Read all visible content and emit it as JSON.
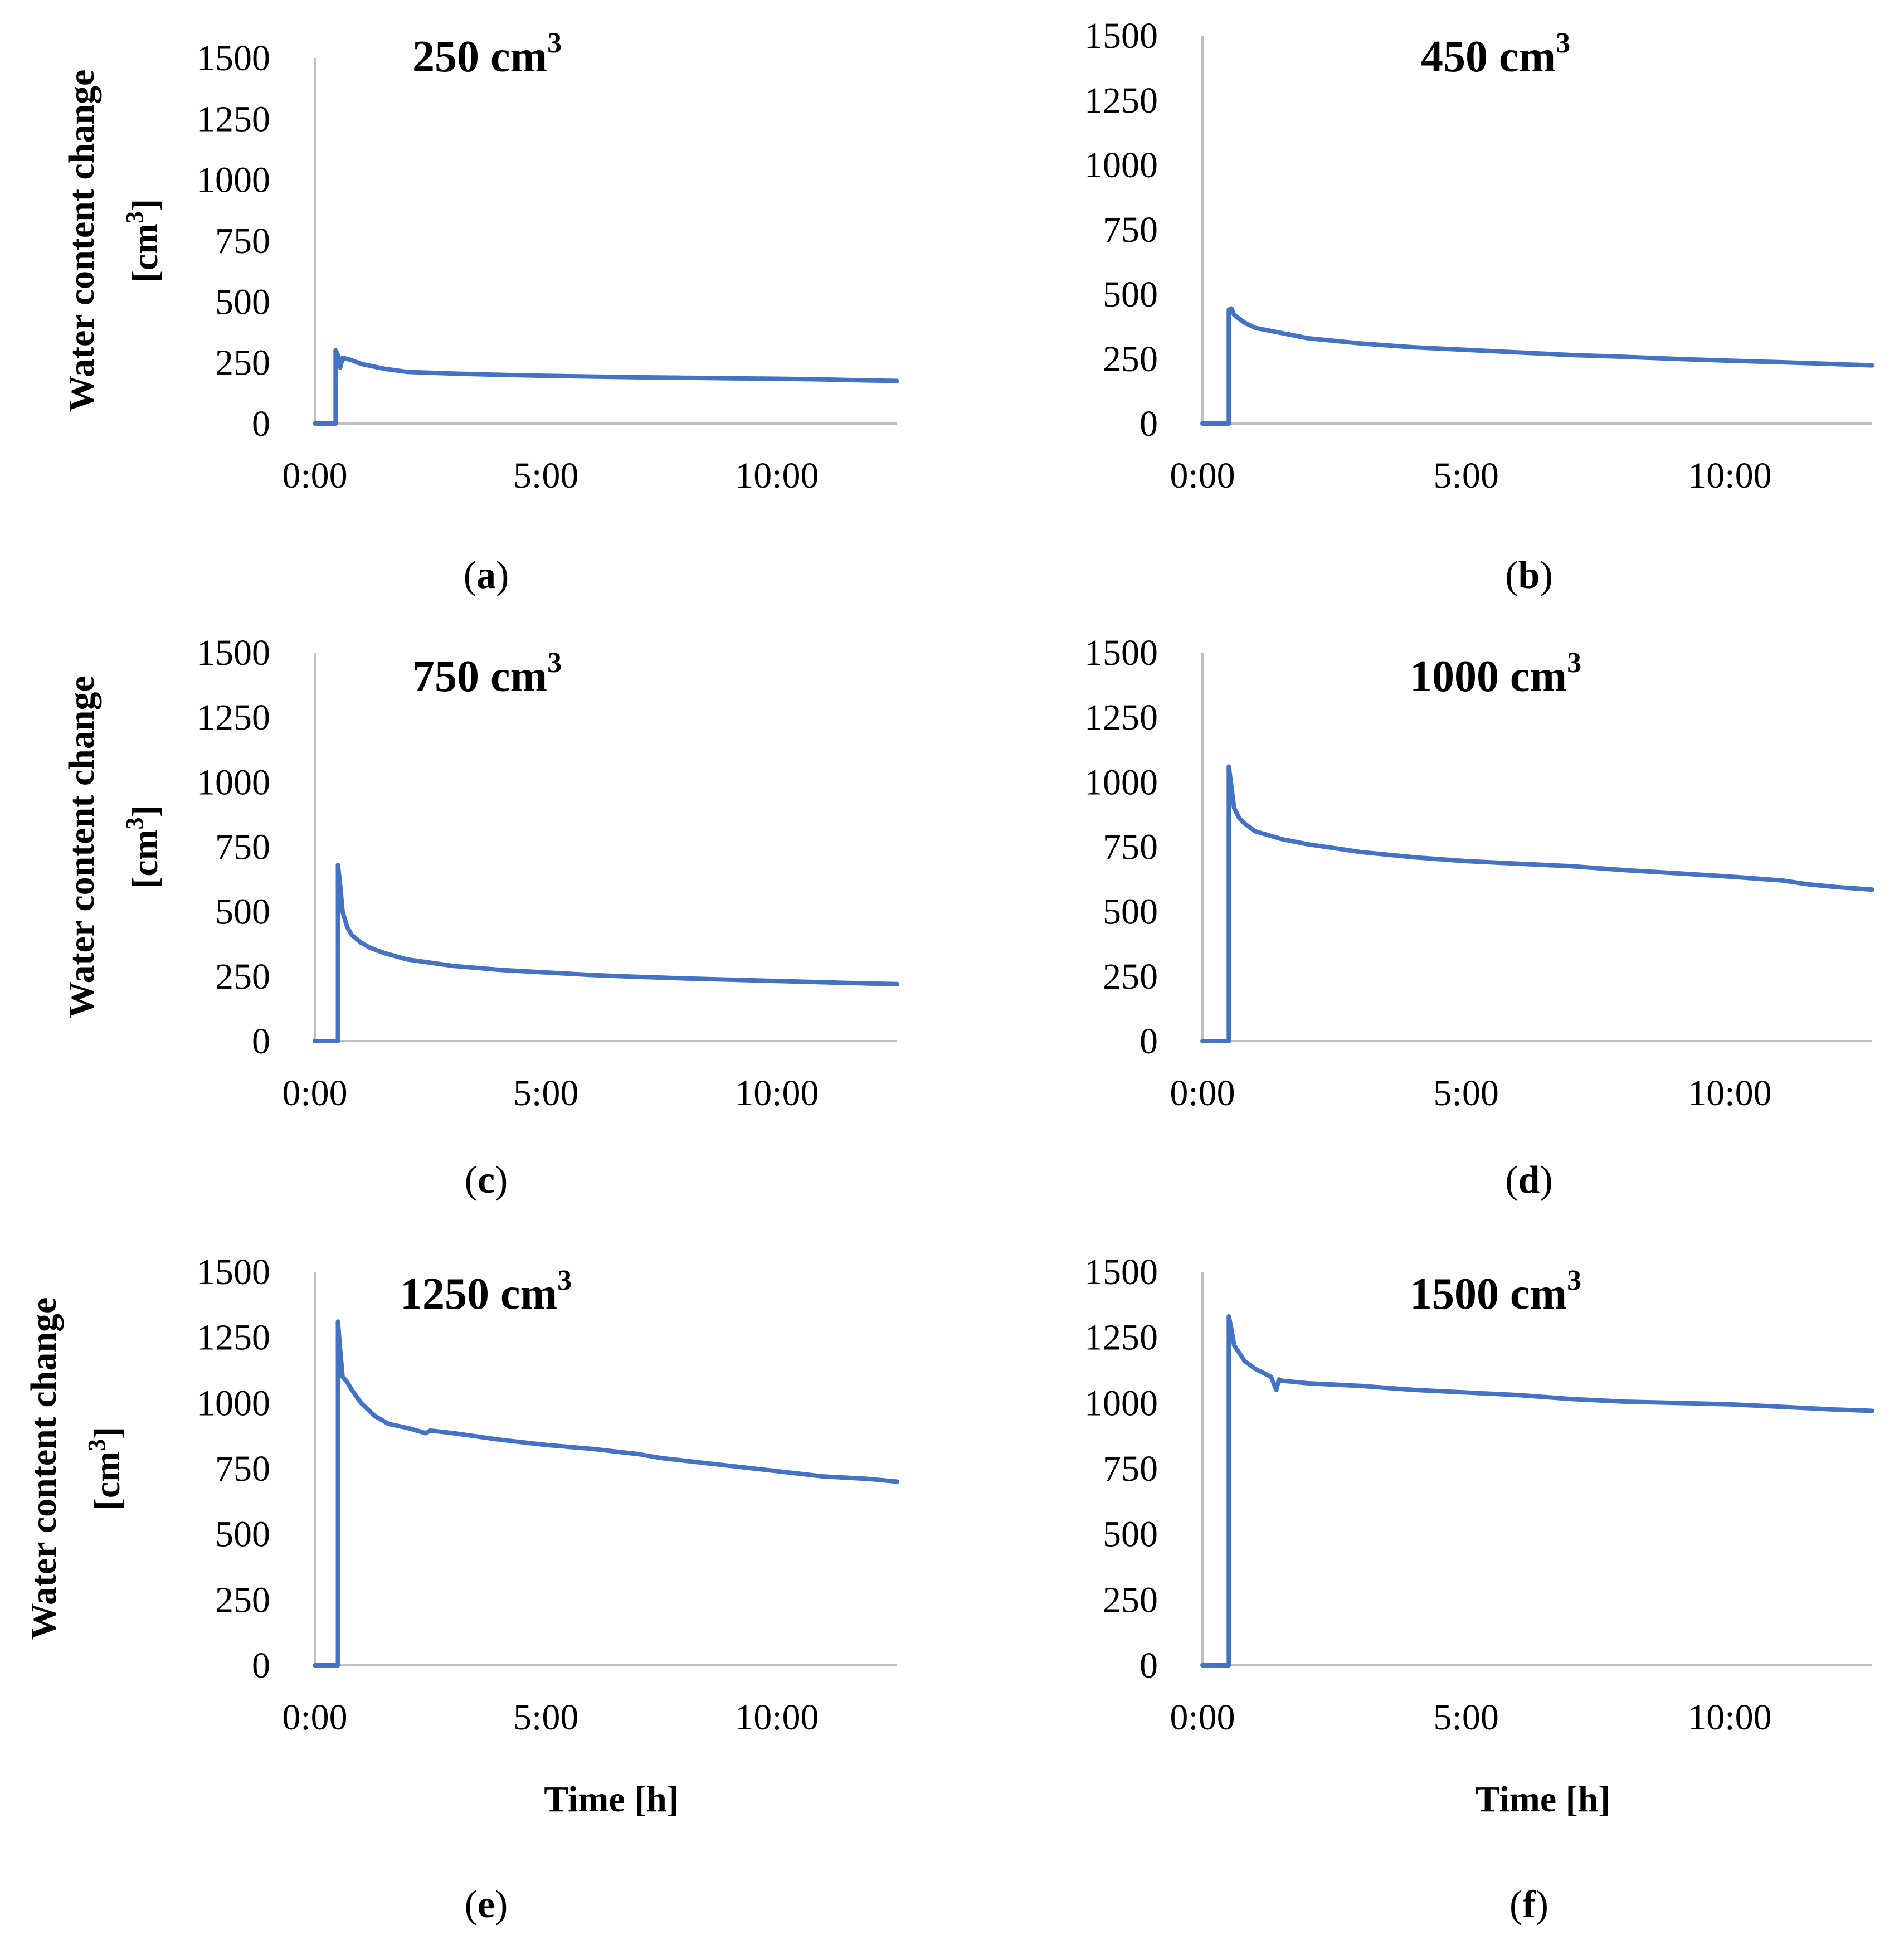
{
  "figure": {
    "panel_count": 6
  },
  "chart_data": [
    {
      "type": "line",
      "panel": "a",
      "caption_open": "(",
      "caption_letter": "a",
      "caption_close": ")",
      "title": "250 cm",
      "title_sup": "3",
      "ylabel": "Water content change",
      "ylabel_unit_open": "[cm",
      "ylabel_unit_sup": "3",
      "ylabel_unit_close": "]",
      "xlabel": "",
      "yticks": [
        "0",
        "250",
        "500",
        "750",
        "1000",
        "1250",
        "1500"
      ],
      "xticks": [
        "0:00",
        "5:00",
        "10:00"
      ],
      "xtick_hours": [
        0,
        5,
        10
      ],
      "xlim": [
        0,
        12.6
      ],
      "ylim": [
        0,
        1500
      ],
      "series_color": "#4472C4",
      "series": [
        {
          "name": "water content change",
          "x": [
            0,
            0.45,
            0.45,
            0.5,
            0.55,
            0.6,
            0.8,
            1.0,
            1.5,
            2.0,
            3.0,
            4.0,
            5.0,
            6.0,
            7.0,
            8.0,
            9.0,
            10.0,
            11.0,
            12.0,
            12.6
          ],
          "y": [
            0,
            0,
            300,
            280,
            230,
            270,
            260,
            245,
            225,
            212,
            205,
            200,
            196,
            193,
            190,
            188,
            186,
            184,
            181,
            177,
            175
          ]
        }
      ]
    },
    {
      "type": "line",
      "panel": "b",
      "caption_open": "(",
      "caption_letter": "b",
      "caption_close": ")",
      "title": "450 cm",
      "title_sup": "3",
      "ylabel": "",
      "ylabel_unit_open": "",
      "ylabel_unit_sup": "",
      "ylabel_unit_close": "",
      "xlabel": "",
      "yticks": [
        "0",
        "250",
        "500",
        "750",
        "1000",
        "1250",
        "1500"
      ],
      "xticks": [
        "0:00",
        "5:00",
        "10:00"
      ],
      "xtick_hours": [
        0,
        5,
        10
      ],
      "xlim": [
        0,
        12.7
      ],
      "ylim": [
        0,
        1500
      ],
      "series_color": "#4472C4",
      "series": [
        {
          "name": "water content change",
          "x": [
            0,
            0.5,
            0.5,
            0.55,
            0.6,
            0.8,
            1.0,
            1.5,
            2.0,
            3.0,
            4.0,
            5.0,
            6.0,
            7.0,
            8.0,
            9.0,
            10.0,
            11.0,
            12.0,
            12.7
          ],
          "y": [
            0,
            0,
            440,
            445,
            420,
            390,
            370,
            350,
            330,
            310,
            295,
            285,
            275,
            265,
            258,
            250,
            243,
            237,
            230,
            225
          ]
        }
      ]
    },
    {
      "type": "line",
      "panel": "c",
      "caption_open": "(",
      "caption_letter": "c",
      "caption_close": ")",
      "title": "750 cm",
      "title_sup": "3",
      "ylabel": "Water content change",
      "ylabel_unit_open": "[cm",
      "ylabel_unit_sup": "3",
      "ylabel_unit_close": "]",
      "xlabel": "",
      "yticks": [
        "0",
        "250",
        "500",
        "750",
        "1000",
        "1250",
        "1500"
      ],
      "xticks": [
        "0:00",
        "5:00",
        "10:00"
      ],
      "xtick_hours": [
        0,
        5,
        10
      ],
      "xlim": [
        0,
        12.6
      ],
      "ylim": [
        0,
        1500
      ],
      "series_color": "#4472C4",
      "series": [
        {
          "name": "water content change",
          "x": [
            0,
            0.5,
            0.5,
            0.55,
            0.6,
            0.7,
            0.8,
            1.0,
            1.2,
            1.5,
            2.0,
            3.0,
            4.0,
            5.0,
            6.0,
            7.0,
            8.0,
            9.0,
            10.0,
            11.0,
            12.0,
            12.6
          ],
          "y": [
            0,
            0,
            680,
            600,
            500,
            440,
            410,
            380,
            360,
            340,
            315,
            290,
            275,
            265,
            255,
            248,
            242,
            237,
            232,
            227,
            222,
            220
          ]
        }
      ]
    },
    {
      "type": "line",
      "panel": "d",
      "caption_open": "(",
      "caption_letter": "d",
      "caption_close": ")",
      "title": "1000 cm",
      "title_sup": "3",
      "ylabel": "",
      "ylabel_unit_open": "",
      "ylabel_unit_sup": "",
      "ylabel_unit_close": "",
      "xlabel": "",
      "yticks": [
        "0",
        "250",
        "500",
        "750",
        "1000",
        "1250",
        "1500"
      ],
      "xticks": [
        "0:00",
        "5:00",
        "10:00"
      ],
      "xtick_hours": [
        0,
        5,
        10
      ],
      "xlim": [
        0,
        12.7
      ],
      "ylim": [
        0,
        1500
      ],
      "series_color": "#4472C4",
      "series": [
        {
          "name": "water content change",
          "x": [
            0,
            0.5,
            0.5,
            0.55,
            0.6,
            0.7,
            0.8,
            1.0,
            1.5,
            2.0,
            2.5,
            3.0,
            4.0,
            5.0,
            6.0,
            7.0,
            8.0,
            9.0,
            10.0,
            11.0,
            11.5,
            12.0,
            12.7
          ],
          "y": [
            0,
            0,
            1060,
            980,
            900,
            860,
            840,
            810,
            780,
            760,
            745,
            730,
            710,
            695,
            685,
            675,
            660,
            648,
            635,
            620,
            605,
            595,
            585
          ]
        }
      ]
    },
    {
      "type": "line",
      "panel": "e",
      "caption_open": "(",
      "caption_letter": "e",
      "caption_close": ")",
      "title": "1250 cm",
      "title_sup": "3",
      "ylabel": "Water content change",
      "ylabel_unit_open": "[cm",
      "ylabel_unit_sup": "3",
      "ylabel_unit_close": "]",
      "xlabel": "Time [h]",
      "yticks": [
        "0",
        "250",
        "500",
        "750",
        "1000",
        "1250",
        "1500"
      ],
      "xticks": [
        "0:00",
        "5:00",
        "10:00"
      ],
      "xtick_hours": [
        0,
        5,
        10
      ],
      "xlim": [
        0,
        12.6
      ],
      "ylim": [
        0,
        1500
      ],
      "series_color": "#4472C4",
      "series": [
        {
          "name": "water content change",
          "x": [
            0,
            0.5,
            0.5,
            0.55,
            0.6,
            0.7,
            0.8,
            1.0,
            1.3,
            1.6,
            2.0,
            2.4,
            2.5,
            3.0,
            4.0,
            5.0,
            6.0,
            7.0,
            7.5,
            8.0,
            9.0,
            10.0,
            11.0,
            12.0,
            12.6
          ],
          "y": [
            0,
            0,
            1310,
            1200,
            1100,
            1080,
            1050,
            1000,
            950,
            920,
            905,
            885,
            895,
            885,
            860,
            840,
            825,
            805,
            790,
            780,
            760,
            740,
            720,
            710,
            700
          ]
        }
      ]
    },
    {
      "type": "line",
      "panel": "f",
      "caption_open": "(",
      "caption_letter": "f",
      "caption_close": ")",
      "title": "1500 cm",
      "title_sup": "3",
      "ylabel": "",
      "ylabel_unit_open": "",
      "ylabel_unit_sup": "",
      "ylabel_unit_close": "",
      "xlabel": "Time [h]",
      "yticks": [
        "0",
        "250",
        "500",
        "750",
        "1000",
        "1250",
        "1500"
      ],
      "xticks": [
        "0:00",
        "5:00",
        "10:00"
      ],
      "xtick_hours": [
        0,
        5,
        10
      ],
      "xlim": [
        0,
        12.7
      ],
      "ylim": [
        0,
        1500
      ],
      "series_color": "#4472C4",
      "series": [
        {
          "name": "water content change",
          "x": [
            0,
            0.5,
            0.5,
            0.55,
            0.6,
            0.7,
            0.8,
            1.0,
            1.3,
            1.4,
            1.45,
            1.5,
            2.0,
            3.0,
            4.0,
            5.0,
            6.0,
            7.0,
            8.0,
            9.0,
            10.0,
            11.0,
            12.0,
            12.7
          ],
          "y": [
            0,
            0,
            1330,
            1280,
            1220,
            1190,
            1160,
            1130,
            1100,
            1050,
            1090,
            1085,
            1075,
            1065,
            1050,
            1040,
            1030,
            1015,
            1005,
            1000,
            995,
            985,
            975,
            970
          ]
        }
      ]
    }
  ]
}
